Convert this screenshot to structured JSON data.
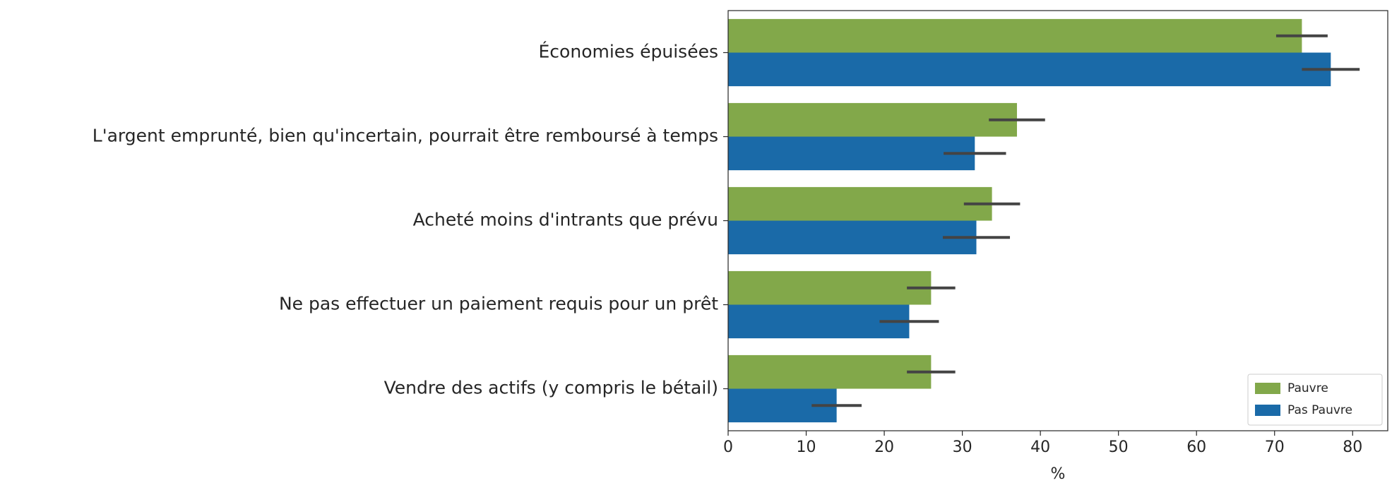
{
  "chart_data": {
    "type": "bar",
    "orientation": "horizontal",
    "categories": [
      "Économies épuisées",
      "L'argent emprunté, bien qu'incertain, pourrait être remboursé à temps",
      "Acheté moins d'intrants que prévu",
      "Ne pas effectuer un paiement requis pour un prêt",
      "Vendre des actifs (y compris le bétail)"
    ],
    "series": [
      {
        "name": "Pauvre",
        "color": "#82a84a",
        "values": [
          73.5,
          37,
          33.8,
          26,
          26
        ],
        "errors": [
          3.3,
          3.6,
          3.6,
          3.1,
          3.1
        ]
      },
      {
        "name": "Pas Pauvre",
        "color": "#1a6aa8",
        "values": [
          77.2,
          31.6,
          31.8,
          23.2,
          13.9
        ],
        "errors": [
          3.7,
          4,
          4.3,
          3.8,
          3.2
        ]
      }
    ],
    "xlabel": "%",
    "xlim": [
      0,
      84.5
    ],
    "xticks": [
      0,
      10,
      20,
      30,
      40,
      50,
      60,
      70,
      80
    ],
    "legend": "lower right",
    "error_color": "#444444"
  }
}
